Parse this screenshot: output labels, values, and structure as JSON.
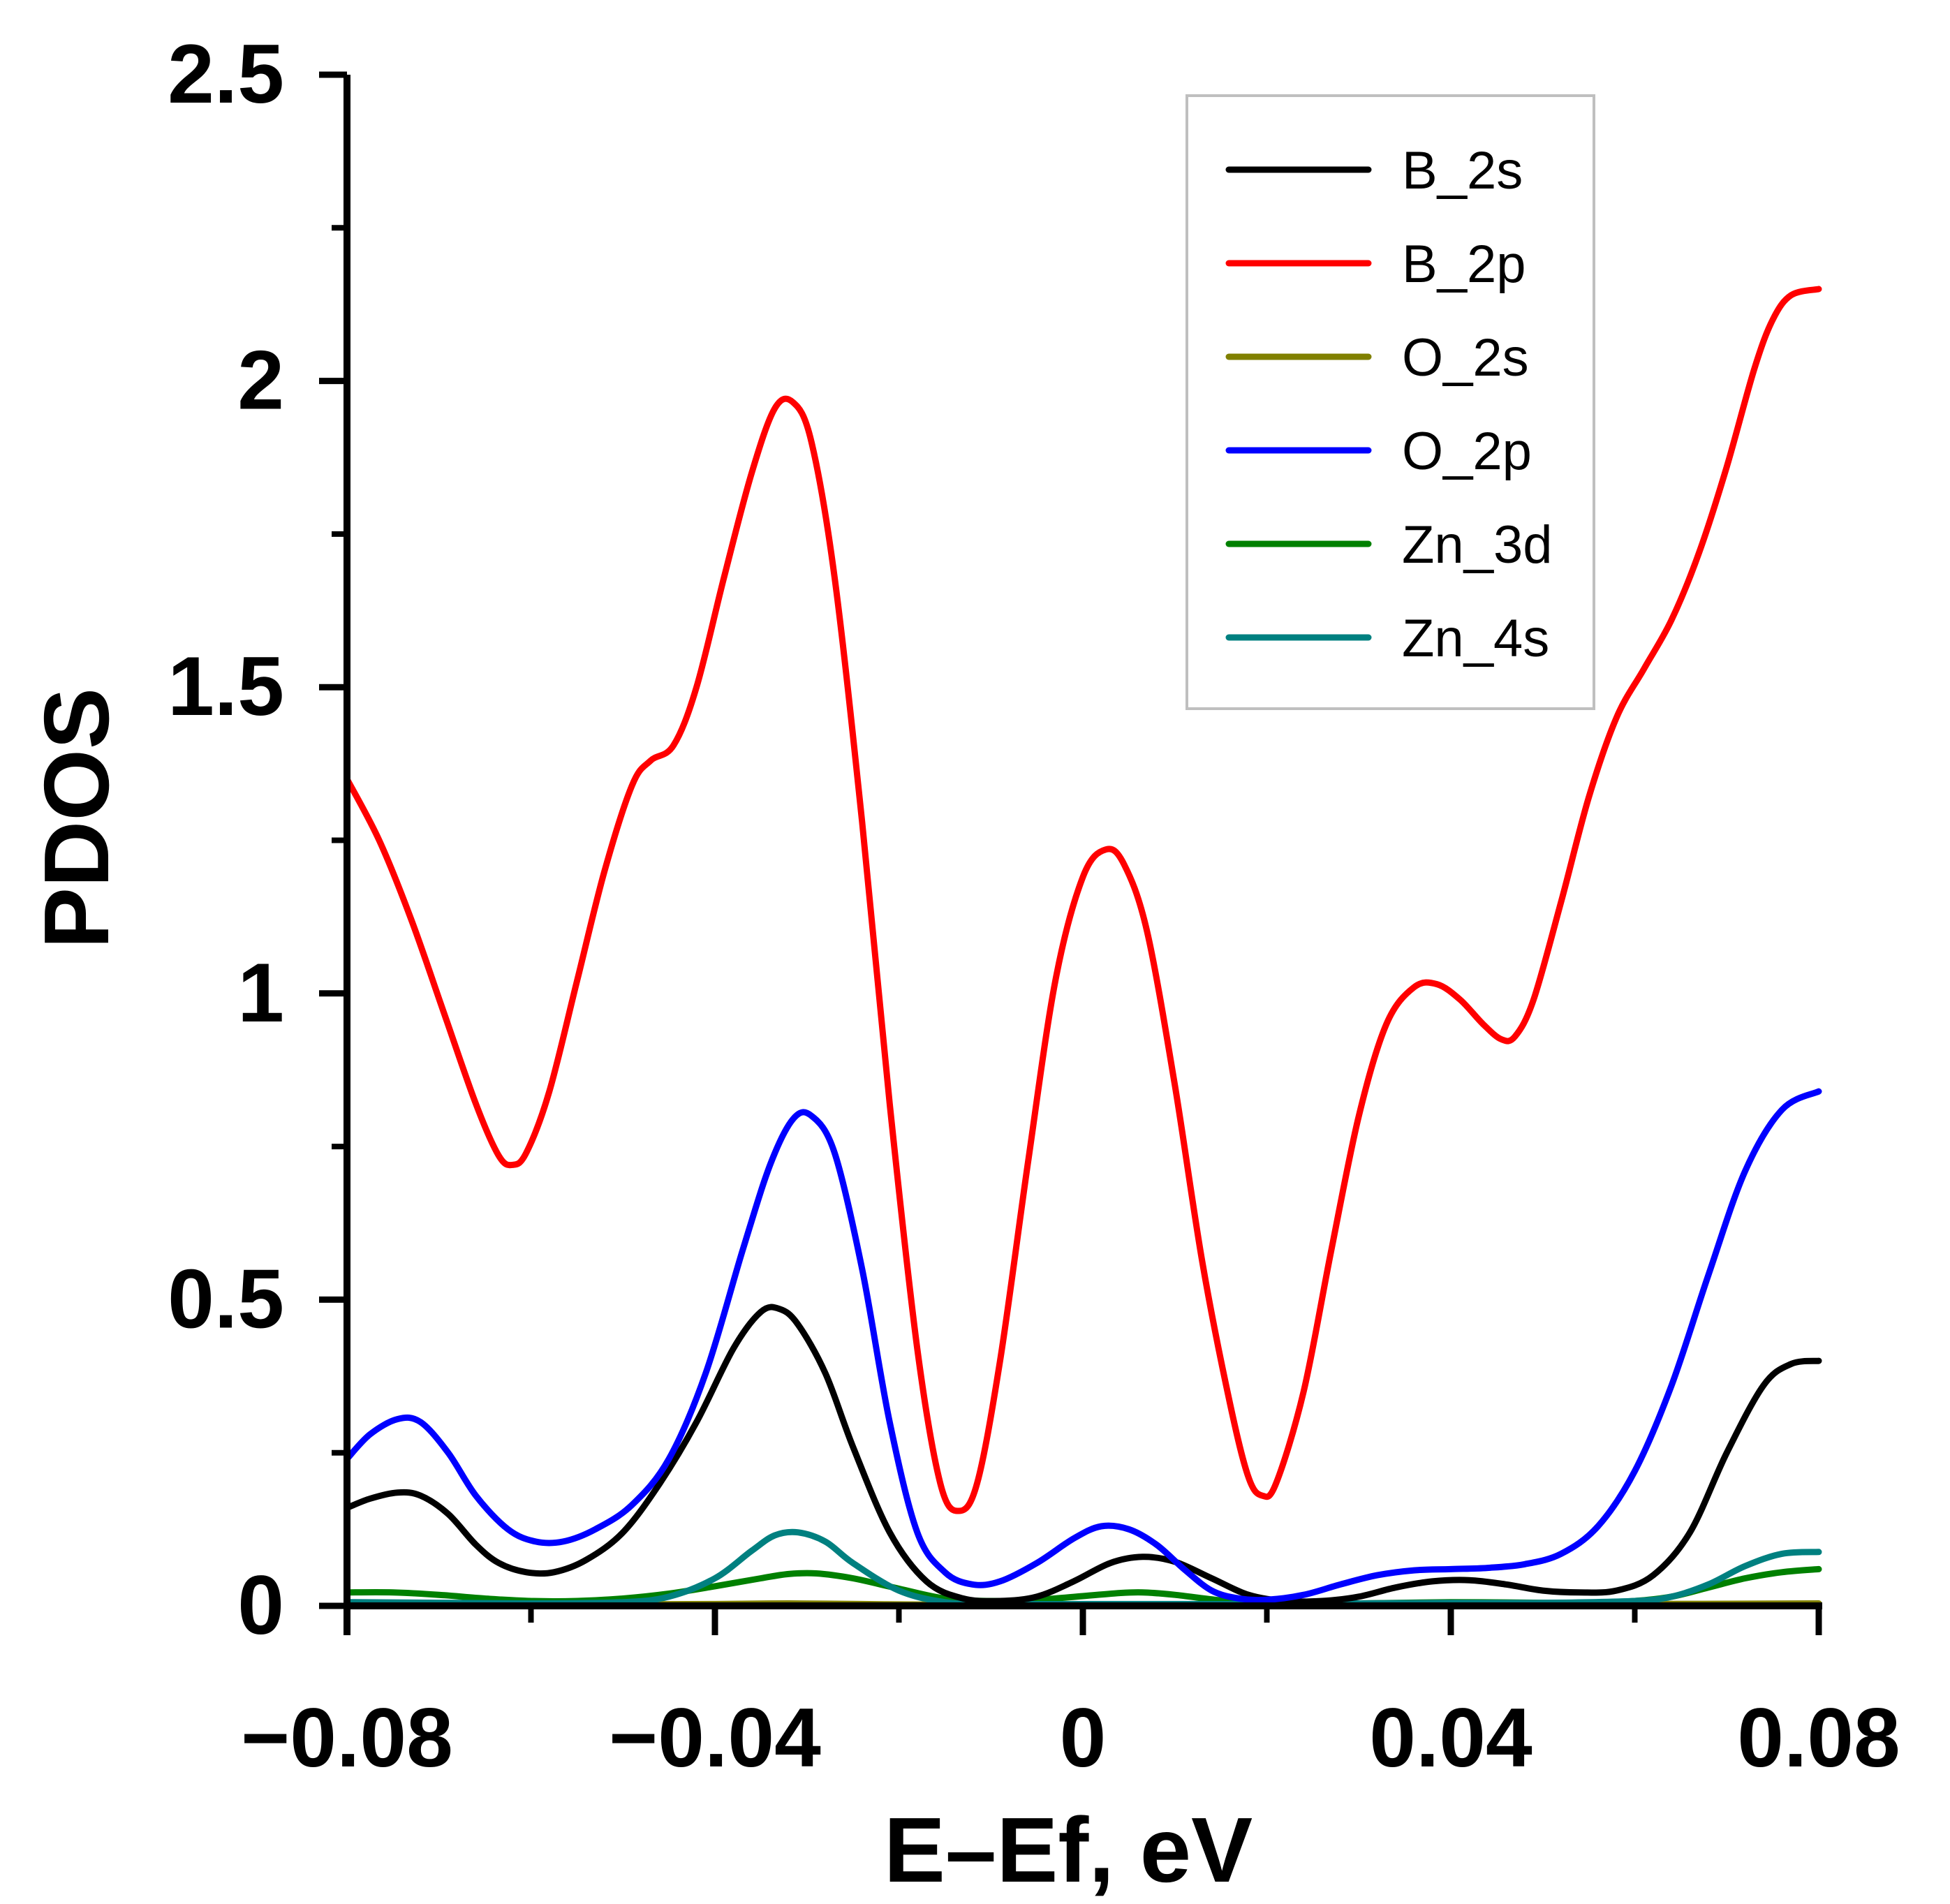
{
  "chart_data": {
    "type": "line",
    "title": "",
    "xlabel": "E–Ef, eV",
    "ylabel": "PDOS",
    "xlim": [
      -0.08,
      0.08
    ],
    "ylim": [
      0,
      2.5
    ],
    "x_major_ticks": [
      -0.08,
      -0.04,
      0,
      0.04,
      0.08
    ],
    "x_tick_labels": [
      "−0.08",
      "−0.04",
      "0",
      "0.04",
      "0.08"
    ],
    "x_minor_ticks": [
      -0.06,
      -0.02,
      0.02,
      0.06
    ],
    "y_major_ticks": [
      0,
      0.5,
      1,
      1.5,
      2,
      2.5
    ],
    "y_tick_labels": [
      "0",
      "0.5",
      "1",
      "1.5",
      "2",
      "2.5"
    ],
    "y_minor_ticks": [
      0.25,
      0.75,
      1.25,
      1.75,
      2.25
    ],
    "grid": false,
    "legend_position": "top-right",
    "series": [
      {
        "name": "B_2s",
        "color": "#000000",
        "points": [
          [
            -0.08,
            0.16
          ],
          [
            -0.0775,
            0.175
          ],
          [
            -0.0745,
            0.185
          ],
          [
            -0.072,
            0.18
          ],
          [
            -0.069,
            0.15
          ],
          [
            -0.066,
            0.1
          ],
          [
            -0.0635,
            0.07
          ],
          [
            -0.0605,
            0.055
          ],
          [
            -0.0575,
            0.055
          ],
          [
            -0.054,
            0.075
          ],
          [
            -0.05,
            0.12
          ],
          [
            -0.046,
            0.2
          ],
          [
            -0.042,
            0.3
          ],
          [
            -0.038,
            0.42
          ],
          [
            -0.035,
            0.48
          ],
          [
            -0.033,
            0.485
          ],
          [
            -0.031,
            0.46
          ],
          [
            -0.028,
            0.38
          ],
          [
            -0.025,
            0.26
          ],
          [
            -0.021,
            0.12
          ],
          [
            -0.017,
            0.04
          ],
          [
            -0.013,
            0.012
          ],
          [
            -0.009,
            0.008
          ],
          [
            -0.005,
            0.015
          ],
          [
            -0.001,
            0.04
          ],
          [
            0.003,
            0.07
          ],
          [
            0.0065,
            0.08
          ],
          [
            0.01,
            0.072
          ],
          [
            0.014,
            0.045
          ],
          [
            0.018,
            0.018
          ],
          [
            0.022,
            0.008
          ],
          [
            0.026,
            0.008
          ],
          [
            0.03,
            0.015
          ],
          [
            0.034,
            0.03
          ],
          [
            0.038,
            0.04
          ],
          [
            0.042,
            0.042
          ],
          [
            0.046,
            0.035
          ],
          [
            0.05,
            0.025
          ],
          [
            0.054,
            0.022
          ],
          [
            0.058,
            0.025
          ],
          [
            0.062,
            0.05
          ],
          [
            0.066,
            0.12
          ],
          [
            0.07,
            0.25
          ],
          [
            0.074,
            0.36
          ],
          [
            0.077,
            0.395
          ],
          [
            0.08,
            0.4
          ]
        ]
      },
      {
        "name": "B_2p",
        "color": "#ff0000",
        "points": [
          [
            -0.08,
            1.35
          ],
          [
            -0.0765,
            1.25
          ],
          [
            -0.073,
            1.12
          ],
          [
            -0.0695,
            0.97
          ],
          [
            -0.066,
            0.82
          ],
          [
            -0.0635,
            0.735
          ],
          [
            -0.062,
            0.72
          ],
          [
            -0.0605,
            0.74
          ],
          [
            -0.058,
            0.84
          ],
          [
            -0.055,
            1.02
          ],
          [
            -0.052,
            1.2
          ],
          [
            -0.049,
            1.34
          ],
          [
            -0.047,
            1.38
          ],
          [
            -0.0445,
            1.405
          ],
          [
            -0.042,
            1.5
          ],
          [
            -0.039,
            1.68
          ],
          [
            -0.036,
            1.85
          ],
          [
            -0.0335,
            1.955
          ],
          [
            -0.0315,
            1.965
          ],
          [
            -0.0295,
            1.9
          ],
          [
            -0.027,
            1.68
          ],
          [
            -0.024,
            1.28
          ],
          [
            -0.021,
            0.82
          ],
          [
            -0.018,
            0.42
          ],
          [
            -0.0155,
            0.2
          ],
          [
            -0.0135,
            0.155
          ],
          [
            -0.0115,
            0.2
          ],
          [
            -0.009,
            0.4
          ],
          [
            -0.006,
            0.72
          ],
          [
            -0.003,
            1.02
          ],
          [
            0,
            1.19
          ],
          [
            0.0025,
            1.235
          ],
          [
            0.0045,
            1.21
          ],
          [
            0.007,
            1.1
          ],
          [
            0.01,
            0.85
          ],
          [
            0.013,
            0.56
          ],
          [
            0.016,
            0.33
          ],
          [
            0.018,
            0.21
          ],
          [
            0.0195,
            0.18
          ],
          [
            0.021,
            0.2
          ],
          [
            0.024,
            0.35
          ],
          [
            0.027,
            0.58
          ],
          [
            0.03,
            0.8
          ],
          [
            0.033,
            0.95
          ],
          [
            0.036,
            1.01
          ],
          [
            0.0385,
            1.015
          ],
          [
            0.041,
            0.99
          ],
          [
            0.0435,
            0.95
          ],
          [
            0.0455,
            0.925
          ],
          [
            0.047,
            0.93
          ],
          [
            0.049,
            0.99
          ],
          [
            0.052,
            1.15
          ],
          [
            0.055,
            1.32
          ],
          [
            0.058,
            1.45
          ],
          [
            0.061,
            1.53
          ],
          [
            0.064,
            1.61
          ],
          [
            0.067,
            1.72
          ],
          [
            0.07,
            1.86
          ],
          [
            0.073,
            2.02
          ],
          [
            0.075,
            2.1
          ],
          [
            0.077,
            2.14
          ],
          [
            0.08,
            2.15
          ]
        ]
      },
      {
        "name": "O_2s",
        "color": "#808000",
        "points": [
          [
            -0.08,
            0.002
          ],
          [
            -0.06,
            0.002
          ],
          [
            -0.04,
            0.003
          ],
          [
            -0.032,
            0.004
          ],
          [
            -0.024,
            0.003
          ],
          [
            -0.016,
            0.002
          ],
          [
            0,
            0.002
          ],
          [
            0.02,
            0.002
          ],
          [
            0.04,
            0.003
          ],
          [
            0.06,
            0.003
          ],
          [
            0.08,
            0.004
          ]
        ]
      },
      {
        "name": "O_2p",
        "color": "#0000ff",
        "points": [
          [
            -0.08,
            0.24
          ],
          [
            -0.0775,
            0.28
          ],
          [
            -0.0745,
            0.305
          ],
          [
            -0.072,
            0.3
          ],
          [
            -0.069,
            0.25
          ],
          [
            -0.066,
            0.18
          ],
          [
            -0.0625,
            0.125
          ],
          [
            -0.0595,
            0.105
          ],
          [
            -0.0565,
            0.105
          ],
          [
            -0.053,
            0.125
          ],
          [
            -0.049,
            0.165
          ],
          [
            -0.045,
            0.24
          ],
          [
            -0.041,
            0.38
          ],
          [
            -0.037,
            0.58
          ],
          [
            -0.034,
            0.72
          ],
          [
            -0.0315,
            0.795
          ],
          [
            -0.0295,
            0.8
          ],
          [
            -0.027,
            0.74
          ],
          [
            -0.024,
            0.55
          ],
          [
            -0.021,
            0.3
          ],
          [
            -0.018,
            0.12
          ],
          [
            -0.015,
            0.055
          ],
          [
            -0.012,
            0.035
          ],
          [
            -0.009,
            0.04
          ],
          [
            -0.005,
            0.07
          ],
          [
            -0.001,
            0.11
          ],
          [
            0.002,
            0.13
          ],
          [
            0.005,
            0.125
          ],
          [
            0.008,
            0.1
          ],
          [
            0.011,
            0.06
          ],
          [
            0.014,
            0.025
          ],
          [
            0.017,
            0.012
          ],
          [
            0.02,
            0.01
          ],
          [
            0.024,
            0.018
          ],
          [
            0.028,
            0.035
          ],
          [
            0.032,
            0.05
          ],
          [
            0.036,
            0.058
          ],
          [
            0.04,
            0.06
          ],
          [
            0.044,
            0.062
          ],
          [
            0.048,
            0.068
          ],
          [
            0.052,
            0.085
          ],
          [
            0.056,
            0.13
          ],
          [
            0.06,
            0.22
          ],
          [
            0.064,
            0.36
          ],
          [
            0.068,
            0.54
          ],
          [
            0.072,
            0.71
          ],
          [
            0.076,
            0.81
          ],
          [
            0.08,
            0.84
          ]
        ]
      },
      {
        "name": "Zn_3d",
        "color": "#008000",
        "points": [
          [
            -0.08,
            0.022
          ],
          [
            -0.075,
            0.022
          ],
          [
            -0.07,
            0.018
          ],
          [
            -0.065,
            0.012
          ],
          [
            -0.06,
            0.008
          ],
          [
            -0.055,
            0.008
          ],
          [
            -0.05,
            0.012
          ],
          [
            -0.045,
            0.02
          ],
          [
            -0.04,
            0.032
          ],
          [
            -0.035,
            0.045
          ],
          [
            -0.032,
            0.052
          ],
          [
            -0.029,
            0.053
          ],
          [
            -0.025,
            0.045
          ],
          [
            -0.02,
            0.028
          ],
          [
            -0.015,
            0.012
          ],
          [
            -0.01,
            0.008
          ],
          [
            -0.005,
            0.01
          ],
          [
            0,
            0.016
          ],
          [
            0.004,
            0.021
          ],
          [
            0.0065,
            0.022
          ],
          [
            0.01,
            0.018
          ],
          [
            0.015,
            0.009
          ],
          [
            0.02,
            0.004
          ],
          [
            0.03,
            0.004
          ],
          [
            0.04,
            0.006
          ],
          [
            0.05,
            0.005
          ],
          [
            0.055,
            0.005
          ],
          [
            0.06,
            0.008
          ],
          [
            0.064,
            0.015
          ],
          [
            0.068,
            0.03
          ],
          [
            0.072,
            0.045
          ],
          [
            0.076,
            0.055
          ],
          [
            0.08,
            0.06
          ]
        ]
      },
      {
        "name": "Zn_4s",
        "color": "#008080",
        "points": [
          [
            -0.08,
            0.006
          ],
          [
            -0.07,
            0.005
          ],
          [
            -0.06,
            0.004
          ],
          [
            -0.05,
            0.006
          ],
          [
            -0.045,
            0.015
          ],
          [
            -0.04,
            0.045
          ],
          [
            -0.036,
            0.09
          ],
          [
            -0.0335,
            0.115
          ],
          [
            -0.031,
            0.12
          ],
          [
            -0.028,
            0.105
          ],
          [
            -0.025,
            0.07
          ],
          [
            -0.02,
            0.025
          ],
          [
            -0.015,
            0.006
          ],
          [
            -0.01,
            0.003
          ],
          [
            0,
            0.003
          ],
          [
            0.01,
            0.003
          ],
          [
            0.02,
            0.003
          ],
          [
            0.03,
            0.004
          ],
          [
            0.04,
            0.005
          ],
          [
            0.05,
            0.005
          ],
          [
            0.06,
            0.008
          ],
          [
            0.064,
            0.015
          ],
          [
            0.068,
            0.035
          ],
          [
            0.072,
            0.065
          ],
          [
            0.076,
            0.085
          ],
          [
            0.08,
            0.088
          ]
        ]
      }
    ]
  }
}
